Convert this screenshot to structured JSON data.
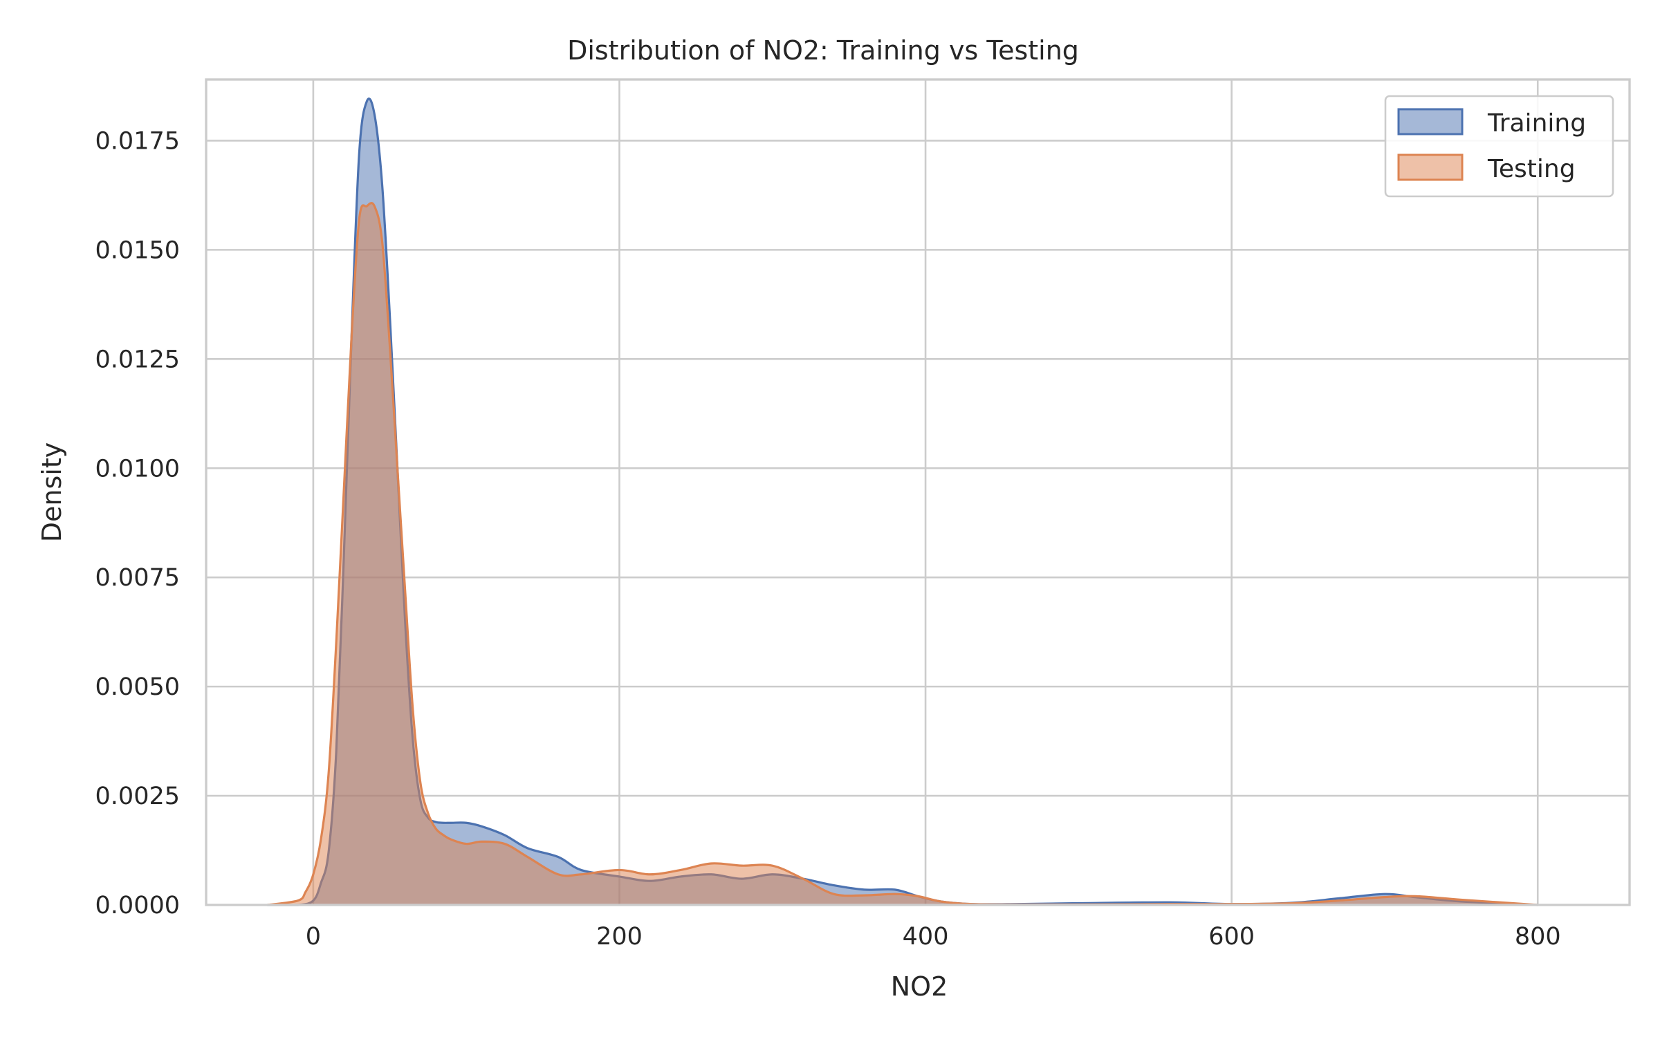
{
  "chart_data": {
    "type": "area",
    "title": "Distribution of NO2: Training vs Testing",
    "xlabel": "NO2",
    "ylabel": "Density",
    "xlim": [
      -70,
      860
    ],
    "ylim": [
      0,
      0.0189
    ],
    "xticks": [
      0,
      200,
      400,
      600,
      800
    ],
    "yticks": [
      0.0,
      0.0025,
      0.005,
      0.0075,
      0.01,
      0.0125,
      0.015,
      0.0175
    ],
    "xtick_labels": [
      "0",
      "200",
      "400",
      "600",
      "800"
    ],
    "ytick_labels": [
      "0.0000",
      "0.0025",
      "0.0050",
      "0.0075",
      "0.0100",
      "0.0125",
      "0.0150",
      "0.0175"
    ],
    "grid": true,
    "legend_position": "top-right",
    "series": [
      {
        "name": "Training",
        "color": "#4c72b0",
        "x": [
          -30,
          -10,
          0,
          5,
          10,
          15,
          20,
          25,
          30,
          35,
          40,
          45,
          50,
          55,
          60,
          65,
          70,
          75,
          80,
          85,
          90,
          100,
          110,
          125,
          140,
          160,
          175,
          200,
          220,
          240,
          260,
          280,
          300,
          320,
          340,
          360,
          380,
          395,
          410,
          430,
          460,
          500,
          560,
          600,
          640,
          670,
          700,
          720,
          750,
          800
        ],
        "y": [
          0,
          0,
          0.0001,
          0.0005,
          0.0012,
          0.0035,
          0.008,
          0.013,
          0.0172,
          0.0184,
          0.0181,
          0.0165,
          0.0135,
          0.01,
          0.0065,
          0.0038,
          0.0024,
          0.002,
          0.0019,
          0.00188,
          0.00188,
          0.00188,
          0.0018,
          0.0016,
          0.0013,
          0.0011,
          0.0008,
          0.00065,
          0.00055,
          0.00065,
          0.0007,
          0.0006,
          0.0007,
          0.0006,
          0.00045,
          0.00035,
          0.00035,
          0.0002,
          8e-05,
          2e-05,
          2e-05,
          4e-05,
          6e-05,
          2e-05,
          5e-05,
          0.00015,
          0.00025,
          0.00018,
          8e-05,
          0
        ]
      },
      {
        "name": "Testing",
        "color": "#dd8452",
        "x": [
          -30,
          -10,
          -5,
          0,
          5,
          10,
          15,
          20,
          25,
          30,
          35,
          40,
          45,
          50,
          55,
          60,
          65,
          70,
          75,
          80,
          85,
          90,
          100,
          110,
          125,
          140,
          160,
          175,
          200,
          220,
          240,
          260,
          280,
          300,
          320,
          340,
          360,
          380,
          395,
          410,
          430,
          460,
          500,
          560,
          600,
          640,
          670,
          700,
          720,
          750,
          800
        ],
        "y": [
          0,
          0.0001,
          0.0003,
          0.0007,
          0.0015,
          0.003,
          0.006,
          0.0095,
          0.013,
          0.0157,
          0.016,
          0.016,
          0.0152,
          0.0128,
          0.01,
          0.0072,
          0.0045,
          0.0028,
          0.0021,
          0.00175,
          0.0016,
          0.0015,
          0.0014,
          0.00145,
          0.0014,
          0.0011,
          0.0007,
          0.0007,
          0.0008,
          0.0007,
          0.0008,
          0.00095,
          0.0009,
          0.0009,
          0.0006,
          0.00025,
          0.00022,
          0.00025,
          0.0002,
          8e-05,
          2e-05,
          1e-05,
          1e-05,
          2e-05,
          2e-05,
          4e-05,
          0.0001,
          0.00018,
          0.0002,
          0.00012,
          0
        ]
      }
    ]
  }
}
